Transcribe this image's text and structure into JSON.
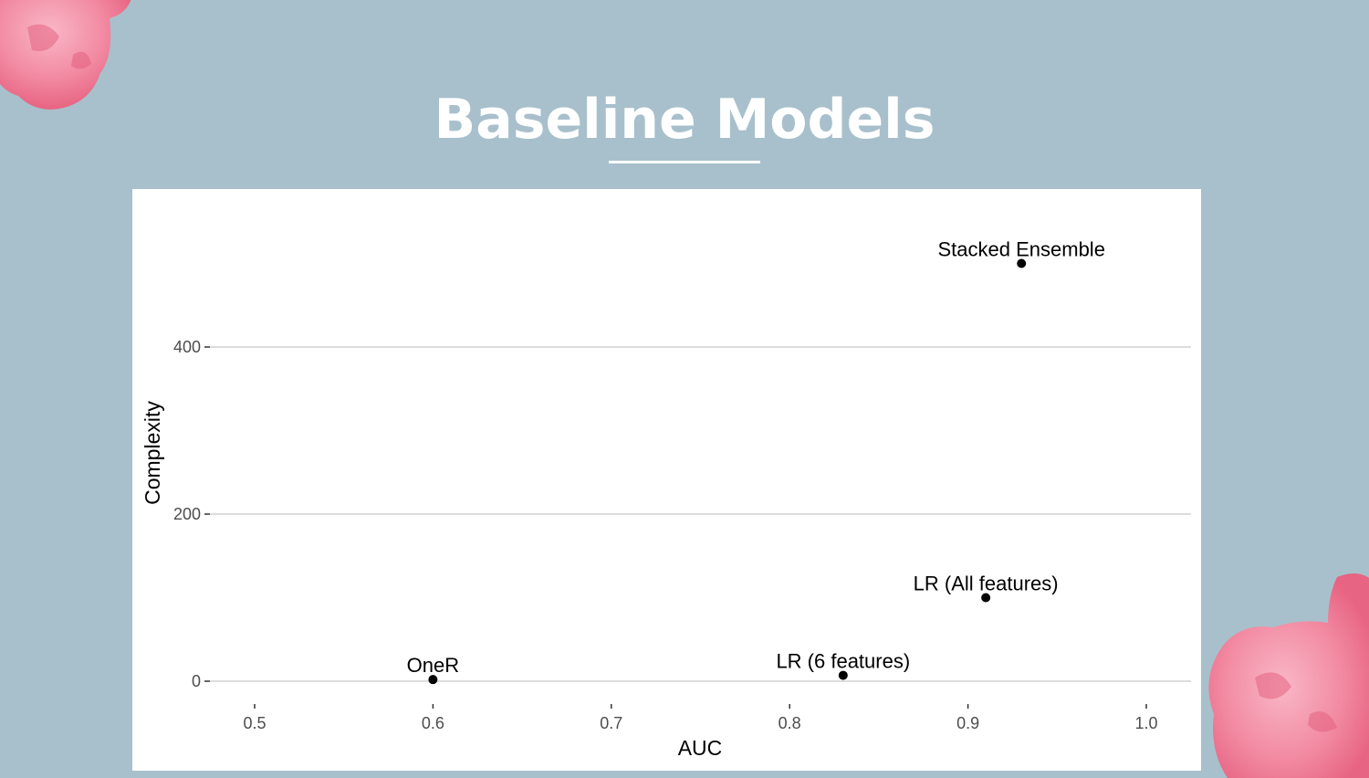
{
  "slide": {
    "title": "Baseline Models"
  },
  "colors": {
    "background": "#a8c0cc",
    "panel": "#ffffff",
    "point": "#000000",
    "grid": "#dcdcdc",
    "decoration": "#f07c98"
  },
  "decorations": [
    "cotton-candy-top-left",
    "cotton-candy-bottom-right"
  ],
  "chart_data": {
    "type": "scatter",
    "xlabel": "AUC",
    "ylabel": "Complexity",
    "xlim": [
      0.47,
      1.03
    ],
    "ylim": [
      -5,
      500
    ],
    "xticks": [
      "0.5",
      "0.6",
      "0.7",
      "0.8",
      "0.9",
      "1.0"
    ],
    "yticks": [
      "0",
      "200",
      "400"
    ],
    "grid": "horizontal major",
    "points": [
      {
        "label": "OneR",
        "x": 0.6,
        "y": 2
      },
      {
        "label": "LR (6 features)",
        "x": 0.83,
        "y": 7
      },
      {
        "label": "LR (All features)",
        "x": 0.91,
        "y": 100
      },
      {
        "label": "Stacked Ensemble",
        "x": 0.93,
        "y": 500
      }
    ]
  }
}
